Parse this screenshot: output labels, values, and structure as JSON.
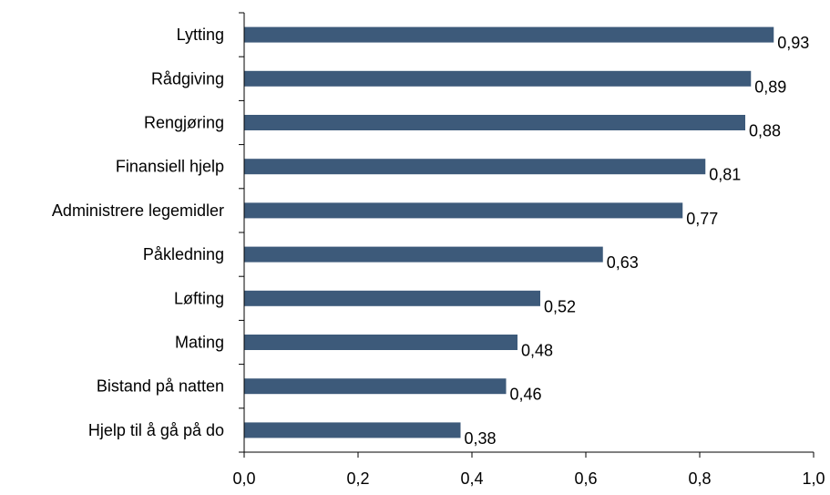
{
  "chart_data": {
    "type": "bar",
    "orientation": "horizontal",
    "categories": [
      "Lytting",
      "Rådgiving",
      "Rengjøring",
      "Finansiell hjelp",
      "Administrere legemidler",
      "Påkledning",
      "Løfting",
      "Mating",
      "Bistand på natten",
      "Hjelp til å gå på do"
    ],
    "values": [
      0.93,
      0.89,
      0.88,
      0.81,
      0.77,
      0.63,
      0.52,
      0.48,
      0.46,
      0.38
    ],
    "value_labels": [
      "0,93",
      "0,89",
      "0,88",
      "0,81",
      "0,77",
      "0,63",
      "0,52",
      "0,48",
      "0,46",
      "0,38"
    ],
    "xlim": [
      0,
      1
    ],
    "xticks": [
      0,
      0.2,
      0.4,
      0.6,
      0.8,
      1.0
    ],
    "xtick_labels": [
      "0,0",
      "0,2",
      "0,4",
      "0,6",
      "0,8",
      "1,0"
    ],
    "bar_color": "#3d5a7a",
    "grid": false,
    "legend": "none"
  }
}
